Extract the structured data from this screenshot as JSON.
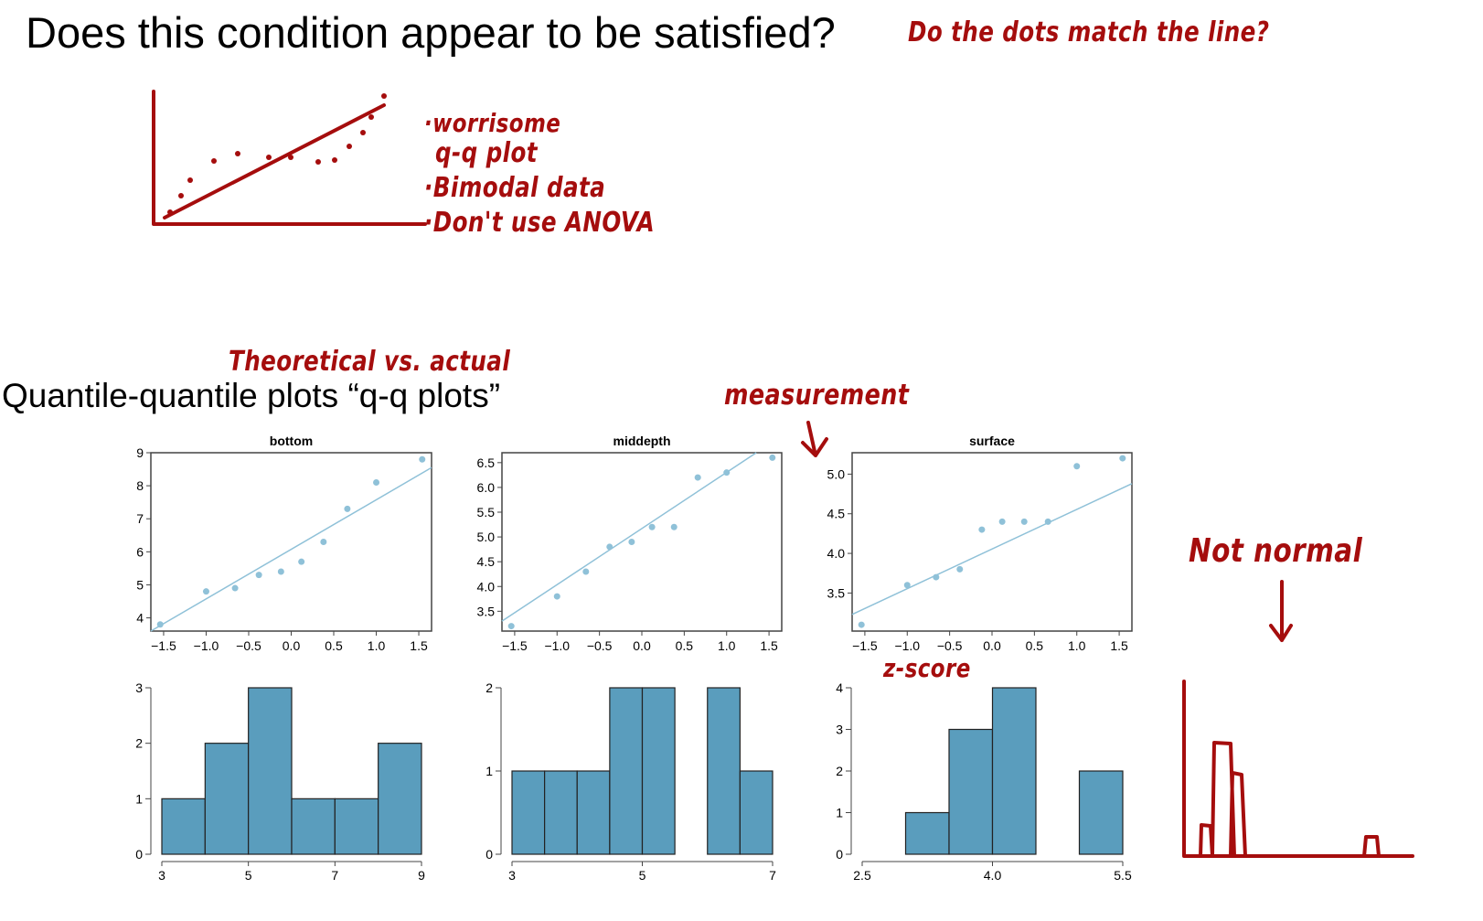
{
  "slide": {
    "title": "Does this condition appear to be satisfied?",
    "subtitle": "Quantile-quantile plots “q-q plots”"
  },
  "annotations": {
    "dots_question": "Do the dots match the line?",
    "note1": "·worrisome",
    "note2": "q-q plot",
    "note3": "·Bimodal data",
    "note4": "·Don't use ANOVA",
    "theoretical": "Theoretical  vs.  actual",
    "measurement": "measurement",
    "zscore": "z-score",
    "not_normal": "Not normal",
    "ink_color": "#a50d0d"
  },
  "chart_data": [
    {
      "type": "scatter",
      "title": "bottom",
      "x": [
        -1.54,
        -1.0,
        -0.66,
        -0.38,
        -0.12,
        0.12,
        0.38,
        0.66,
        1.0,
        1.54
      ],
      "y": [
        3.8,
        4.8,
        4.9,
        5.3,
        5.4,
        5.7,
        6.3,
        7.3,
        8.1,
        8.8
      ],
      "reference_line": [
        [
          -1.65,
          3.6
        ],
        [
          1.65,
          8.55
        ]
      ],
      "xlim": [
        -1.65,
        1.65
      ],
      "ylim": [
        3.6,
        9.0
      ],
      "xticks": [
        "-1.5",
        "-1.0",
        "-0.5",
        "0.0",
        "0.5",
        "1.0",
        "1.5"
      ],
      "yticks": [
        "4",
        "5",
        "6",
        "7",
        "8",
        "9"
      ],
      "color": "#8fc1d8"
    },
    {
      "type": "scatter",
      "title": "middepth",
      "x": [
        -1.54,
        -1.0,
        -0.66,
        -0.38,
        -0.12,
        0.12,
        0.38,
        0.66,
        1.0,
        1.54
      ],
      "y": [
        3.2,
        3.8,
        4.3,
        4.8,
        4.9,
        5.2,
        5.2,
        6.2,
        6.3,
        6.6
      ],
      "reference_line": [
        [
          -1.65,
          3.3
        ],
        [
          1.35,
          6.7
        ]
      ],
      "xlim": [
        -1.65,
        1.65
      ],
      "ylim": [
        3.1,
        6.7
      ],
      "xticks": [
        "-1.5",
        "-1.0",
        "-0.5",
        "0.0",
        "0.5",
        "1.0",
        "1.5"
      ],
      "yticks": [
        "3.5",
        "4.0",
        "4.5",
        "5.0",
        "5.5",
        "6.0",
        "6.5"
      ],
      "color": "#8fc1d8"
    },
    {
      "type": "scatter",
      "title": "surface",
      "x": [
        -1.54,
        -1.0,
        -0.66,
        -0.38,
        -0.12,
        0.12,
        0.38,
        0.66,
        1.0,
        1.54
      ],
      "y": [
        3.1,
        3.6,
        3.7,
        3.8,
        4.3,
        4.4,
        4.4,
        4.4,
        5.1,
        5.2
      ],
      "reference_line": [
        [
          -1.65,
          3.23
        ],
        [
          1.65,
          4.88
        ]
      ],
      "xlim": [
        -1.65,
        1.65
      ],
      "ylim": [
        3.02,
        5.27
      ],
      "xticks": [
        "-1.5",
        "-1.0",
        "-0.5",
        "0.0",
        "0.5",
        "1.0",
        "1.5"
      ],
      "yticks": [
        "3.5",
        "4.0",
        "4.5",
        "5.0"
      ],
      "color": "#8fc1d8"
    },
    {
      "type": "bar",
      "bin_edges": [
        3,
        4,
        5,
        6,
        7,
        8,
        9
      ],
      "values": [
        1,
        2,
        3,
        1,
        1,
        2
      ],
      "xlim": [
        3,
        9
      ],
      "ylim": [
        0,
        3
      ],
      "xticks": [
        "3",
        "5",
        "7",
        "9"
      ],
      "yticks": [
        "0",
        "1",
        "2",
        "3"
      ],
      "color": "#5a9dbd"
    },
    {
      "type": "bar",
      "bin_edges": [
        3,
        3.5,
        4,
        4.5,
        5,
        5.5,
        6,
        6.5,
        7
      ],
      "values": [
        1,
        1,
        1,
        2,
        2,
        0,
        2,
        1
      ],
      "xlim": [
        3,
        7
      ],
      "ylim": [
        0,
        2
      ],
      "xticks": [
        "3",
        "5",
        "7"
      ],
      "yticks": [
        "0",
        "1",
        "2"
      ],
      "color": "#5a9dbd"
    },
    {
      "type": "bar",
      "bin_edges": [
        3,
        3.5,
        4,
        4.5,
        5,
        5.5
      ],
      "values": [
        1,
        3,
        4,
        0,
        2
      ],
      "xlim": [
        2.5,
        5.5
      ],
      "ylim": [
        0,
        4
      ],
      "xticks": [
        "2.5",
        "4.0",
        "5.5"
      ],
      "yticks": [
        "0",
        "1",
        "2",
        "3",
        "4"
      ],
      "color": "#5a9dbd"
    }
  ]
}
